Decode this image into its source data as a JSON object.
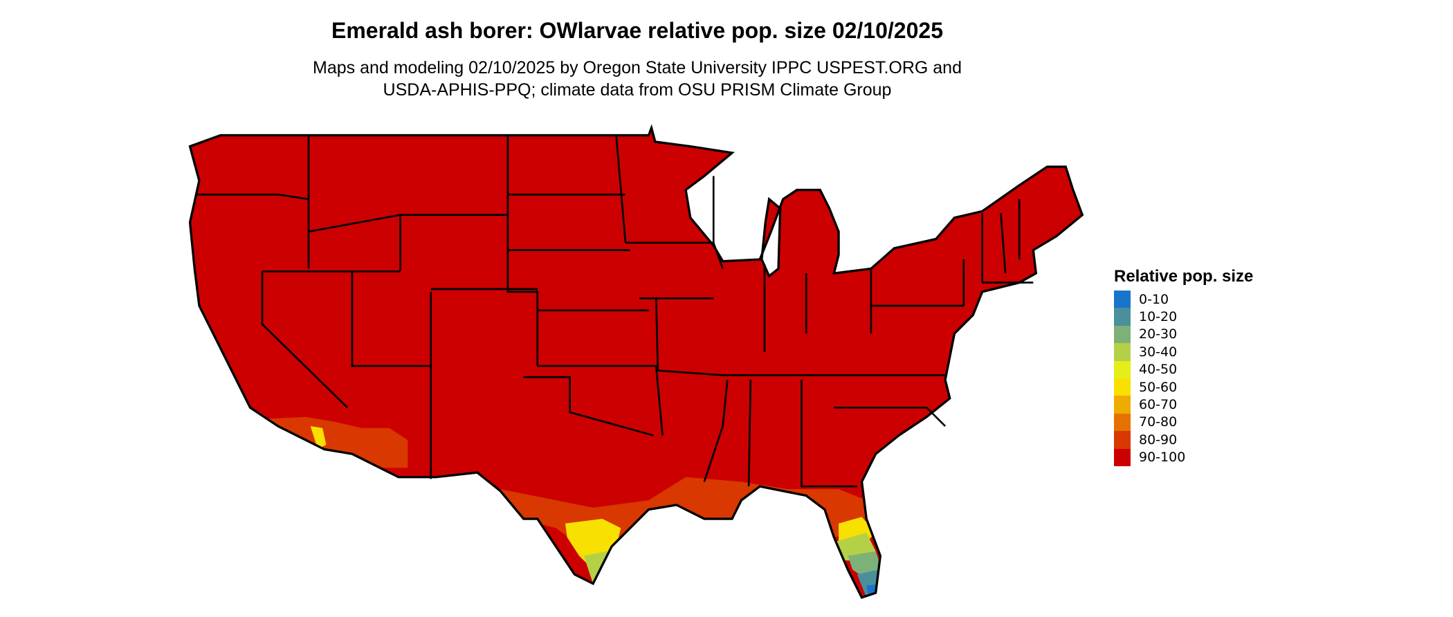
{
  "title": "Emerald ash borer: OWlarvae relative pop. size 02/10/2025",
  "subtitle_lines": [
    "Maps and modeling 02/10/2025 by Oregon State University IPPC USPEST.ORG and",
    "USDA-APHIS-PPQ; climate data from OSU PRISM Climate Group"
  ],
  "legend": {
    "title": "Relative pop. size",
    "items": [
      {
        "label": "0-10",
        "color": "#1874cd"
      },
      {
        "label": "10-20",
        "color": "#4a8f9c"
      },
      {
        "label": "20-30",
        "color": "#7db177"
      },
      {
        "label": "30-40",
        "color": "#b4d046"
      },
      {
        "label": "40-50",
        "color": "#e5ee18"
      },
      {
        "label": "50-60",
        "color": "#f8e000"
      },
      {
        "label": "60-70",
        "color": "#efab00"
      },
      {
        "label": "70-80",
        "color": "#e57200"
      },
      {
        "label": "80-90",
        "color": "#d93800"
      },
      {
        "label": "90-100",
        "color": "#cc0000"
      }
    ]
  },
  "map": {
    "region": "Contiguous United States",
    "dominant_class": "90-100"
  }
}
